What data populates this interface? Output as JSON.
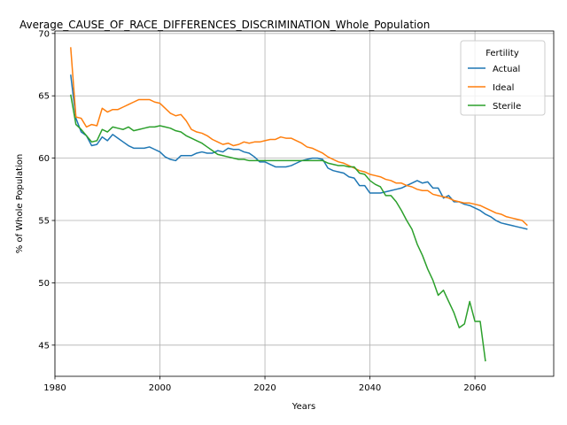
{
  "chart_data": {
    "type": "line",
    "title": "Average_CAUSE_OF_RACE_DIFFERENCES_DISCRIMINATION_Whole_Population",
    "xlabel": "Years",
    "ylabel": "% of Whole Population",
    "xlim": [
      1980,
      2075
    ],
    "ylim": [
      42.5,
      70.2
    ],
    "xticks": [
      1980,
      2000,
      2020,
      2040,
      2060
    ],
    "yticks": [
      45,
      50,
      55,
      60,
      65,
      70
    ],
    "grid": true,
    "legend": {
      "title": "Fertility",
      "placement": "top-right"
    },
    "series": [
      {
        "name": "Actual",
        "color": "#1f77b4",
        "x": [
          1983,
          1984,
          1985,
          1986,
          1987,
          1988,
          1989,
          1990,
          1991,
          1992,
          1993,
          1994,
          1995,
          1996,
          1997,
          1998,
          1999,
          2000,
          2001,
          2002,
          2003,
          2004,
          2005,
          2006,
          2007,
          2008,
          2009,
          2010,
          2011,
          2012,
          2013,
          2014,
          2015,
          2016,
          2017,
          2018,
          2019,
          2020,
          2021,
          2022,
          2023,
          2024,
          2025,
          2026,
          2027,
          2028,
          2029,
          2030,
          2031,
          2032,
          2033,
          2034,
          2035,
          2036,
          2037,
          2038,
          2039,
          2040,
          2041,
          2042,
          2043,
          2044,
          2045,
          2046,
          2047,
          2048,
          2049,
          2050,
          2051,
          2052,
          2053,
          2054,
          2055,
          2056,
          2057,
          2058,
          2059,
          2060,
          2061,
          2062,
          2063,
          2064,
          2065,
          2066,
          2067,
          2068,
          2069,
          2070
        ],
        "values": [
          66.7,
          63.2,
          62.1,
          61.8,
          61.0,
          61.1,
          61.7,
          61.4,
          61.9,
          61.6,
          61.3,
          61.0,
          60.8,
          60.8,
          60.8,
          60.9,
          60.7,
          60.5,
          60.1,
          59.9,
          59.8,
          60.2,
          60.2,
          60.2,
          60.4,
          60.5,
          60.4,
          60.4,
          60.6,
          60.5,
          60.8,
          60.7,
          60.7,
          60.5,
          60.4,
          60.1,
          59.7,
          59.7,
          59.5,
          59.3,
          59.3,
          59.3,
          59.4,
          59.6,
          59.8,
          59.9,
          60.0,
          60.0,
          59.9,
          59.2,
          59.0,
          58.9,
          58.8,
          58.5,
          58.4,
          57.8,
          57.8,
          57.2,
          57.2,
          57.2,
          57.3,
          57.4,
          57.5,
          57.6,
          57.8,
          58.0,
          58.2,
          58.0,
          58.1,
          57.6,
          57.6,
          56.8,
          57.0,
          56.5,
          56.5,
          56.3,
          56.2,
          56.0,
          55.8,
          55.5,
          55.3,
          55.0,
          54.8,
          54.7,
          54.6,
          54.5,
          54.4,
          54.3
        ]
      },
      {
        "name": "Ideal",
        "color": "#ff7f0e",
        "x": [
          1983,
          1984,
          1985,
          1986,
          1987,
          1988,
          1989,
          1990,
          1991,
          1992,
          1993,
          1994,
          1995,
          1996,
          1997,
          1998,
          1999,
          2000,
          2001,
          2002,
          2003,
          2004,
          2005,
          2006,
          2007,
          2008,
          2009,
          2010,
          2011,
          2012,
          2013,
          2014,
          2015,
          2016,
          2017,
          2018,
          2019,
          2020,
          2021,
          2022,
          2023,
          2024,
          2025,
          2026,
          2027,
          2028,
          2029,
          2030,
          2031,
          2032,
          2033,
          2034,
          2035,
          2036,
          2037,
          2038,
          2039,
          2040,
          2041,
          2042,
          2043,
          2044,
          2045,
          2046,
          2047,
          2048,
          2049,
          2050,
          2051,
          2052,
          2053,
          2054,
          2055,
          2056,
          2057,
          2058,
          2059,
          2060,
          2061,
          2062,
          2063,
          2064,
          2065,
          2066,
          2067,
          2068,
          2069,
          2070
        ],
        "values": [
          68.9,
          63.3,
          63.2,
          62.5,
          62.7,
          62.6,
          64.0,
          63.7,
          63.9,
          63.9,
          64.1,
          64.3,
          64.5,
          64.7,
          64.7,
          64.7,
          64.5,
          64.4,
          64.0,
          63.6,
          63.4,
          63.5,
          63.0,
          62.3,
          62.1,
          62.0,
          61.8,
          61.5,
          61.3,
          61.1,
          61.2,
          61.0,
          61.1,
          61.3,
          61.2,
          61.3,
          61.3,
          61.4,
          61.5,
          61.5,
          61.7,
          61.6,
          61.6,
          61.4,
          61.2,
          60.9,
          60.8,
          60.6,
          60.4,
          60.1,
          59.9,
          59.7,
          59.6,
          59.4,
          59.2,
          59.0,
          58.9,
          58.7,
          58.6,
          58.5,
          58.3,
          58.2,
          58.0,
          58.0,
          57.8,
          57.7,
          57.5,
          57.4,
          57.4,
          57.1,
          57.0,
          56.9,
          56.8,
          56.6,
          56.5,
          56.4,
          56.4,
          56.3,
          56.2,
          56.0,
          55.8,
          55.6,
          55.5,
          55.3,
          55.2,
          55.1,
          55.0,
          54.6
        ]
      },
      {
        "name": "Sterile",
        "color": "#2ca02c",
        "x": [
          1983,
          1984,
          1985,
          1986,
          1987,
          1988,
          1989,
          1990,
          1991,
          1992,
          1993,
          1994,
          1995,
          1996,
          1997,
          1998,
          1999,
          2000,
          2001,
          2002,
          2003,
          2004,
          2005,
          2006,
          2007,
          2008,
          2009,
          2010,
          2011,
          2012,
          2013,
          2014,
          2015,
          2016,
          2017,
          2018,
          2019,
          2020,
          2021,
          2022,
          2023,
          2024,
          2025,
          2026,
          2027,
          2028,
          2029,
          2030,
          2031,
          2032,
          2033,
          2034,
          2035,
          2036,
          2037,
          2038,
          2039,
          2040,
          2041,
          2042,
          2043,
          2044,
          2045,
          2046,
          2047,
          2048,
          2049,
          2050,
          2051,
          2052,
          2053,
          2054,
          2055,
          2056,
          2057,
          2058,
          2059,
          2060,
          2061,
          2062
        ],
        "values": [
          65.1,
          62.7,
          62.3,
          61.8,
          61.3,
          61.4,
          62.3,
          62.1,
          62.5,
          62.4,
          62.3,
          62.5,
          62.2,
          62.3,
          62.4,
          62.5,
          62.5,
          62.6,
          62.5,
          62.4,
          62.2,
          62.1,
          61.8,
          61.6,
          61.4,
          61.2,
          60.9,
          60.6,
          60.3,
          60.2,
          60.1,
          60.0,
          59.9,
          59.9,
          59.8,
          59.8,
          59.8,
          59.8,
          59.8,
          59.8,
          59.8,
          59.8,
          59.8,
          59.8,
          59.8,
          59.8,
          59.8,
          59.8,
          59.8,
          59.6,
          59.5,
          59.4,
          59.4,
          59.3,
          59.3,
          58.8,
          58.7,
          58.2,
          57.9,
          57.7,
          57.0,
          57.0,
          56.5,
          55.8,
          55.0,
          54.3,
          53.1,
          52.2,
          51.1,
          50.2,
          49.0,
          49.4,
          48.5,
          47.6,
          46.4,
          46.7,
          48.5,
          46.9,
          46.9,
          43.7
        ]
      }
    ]
  }
}
